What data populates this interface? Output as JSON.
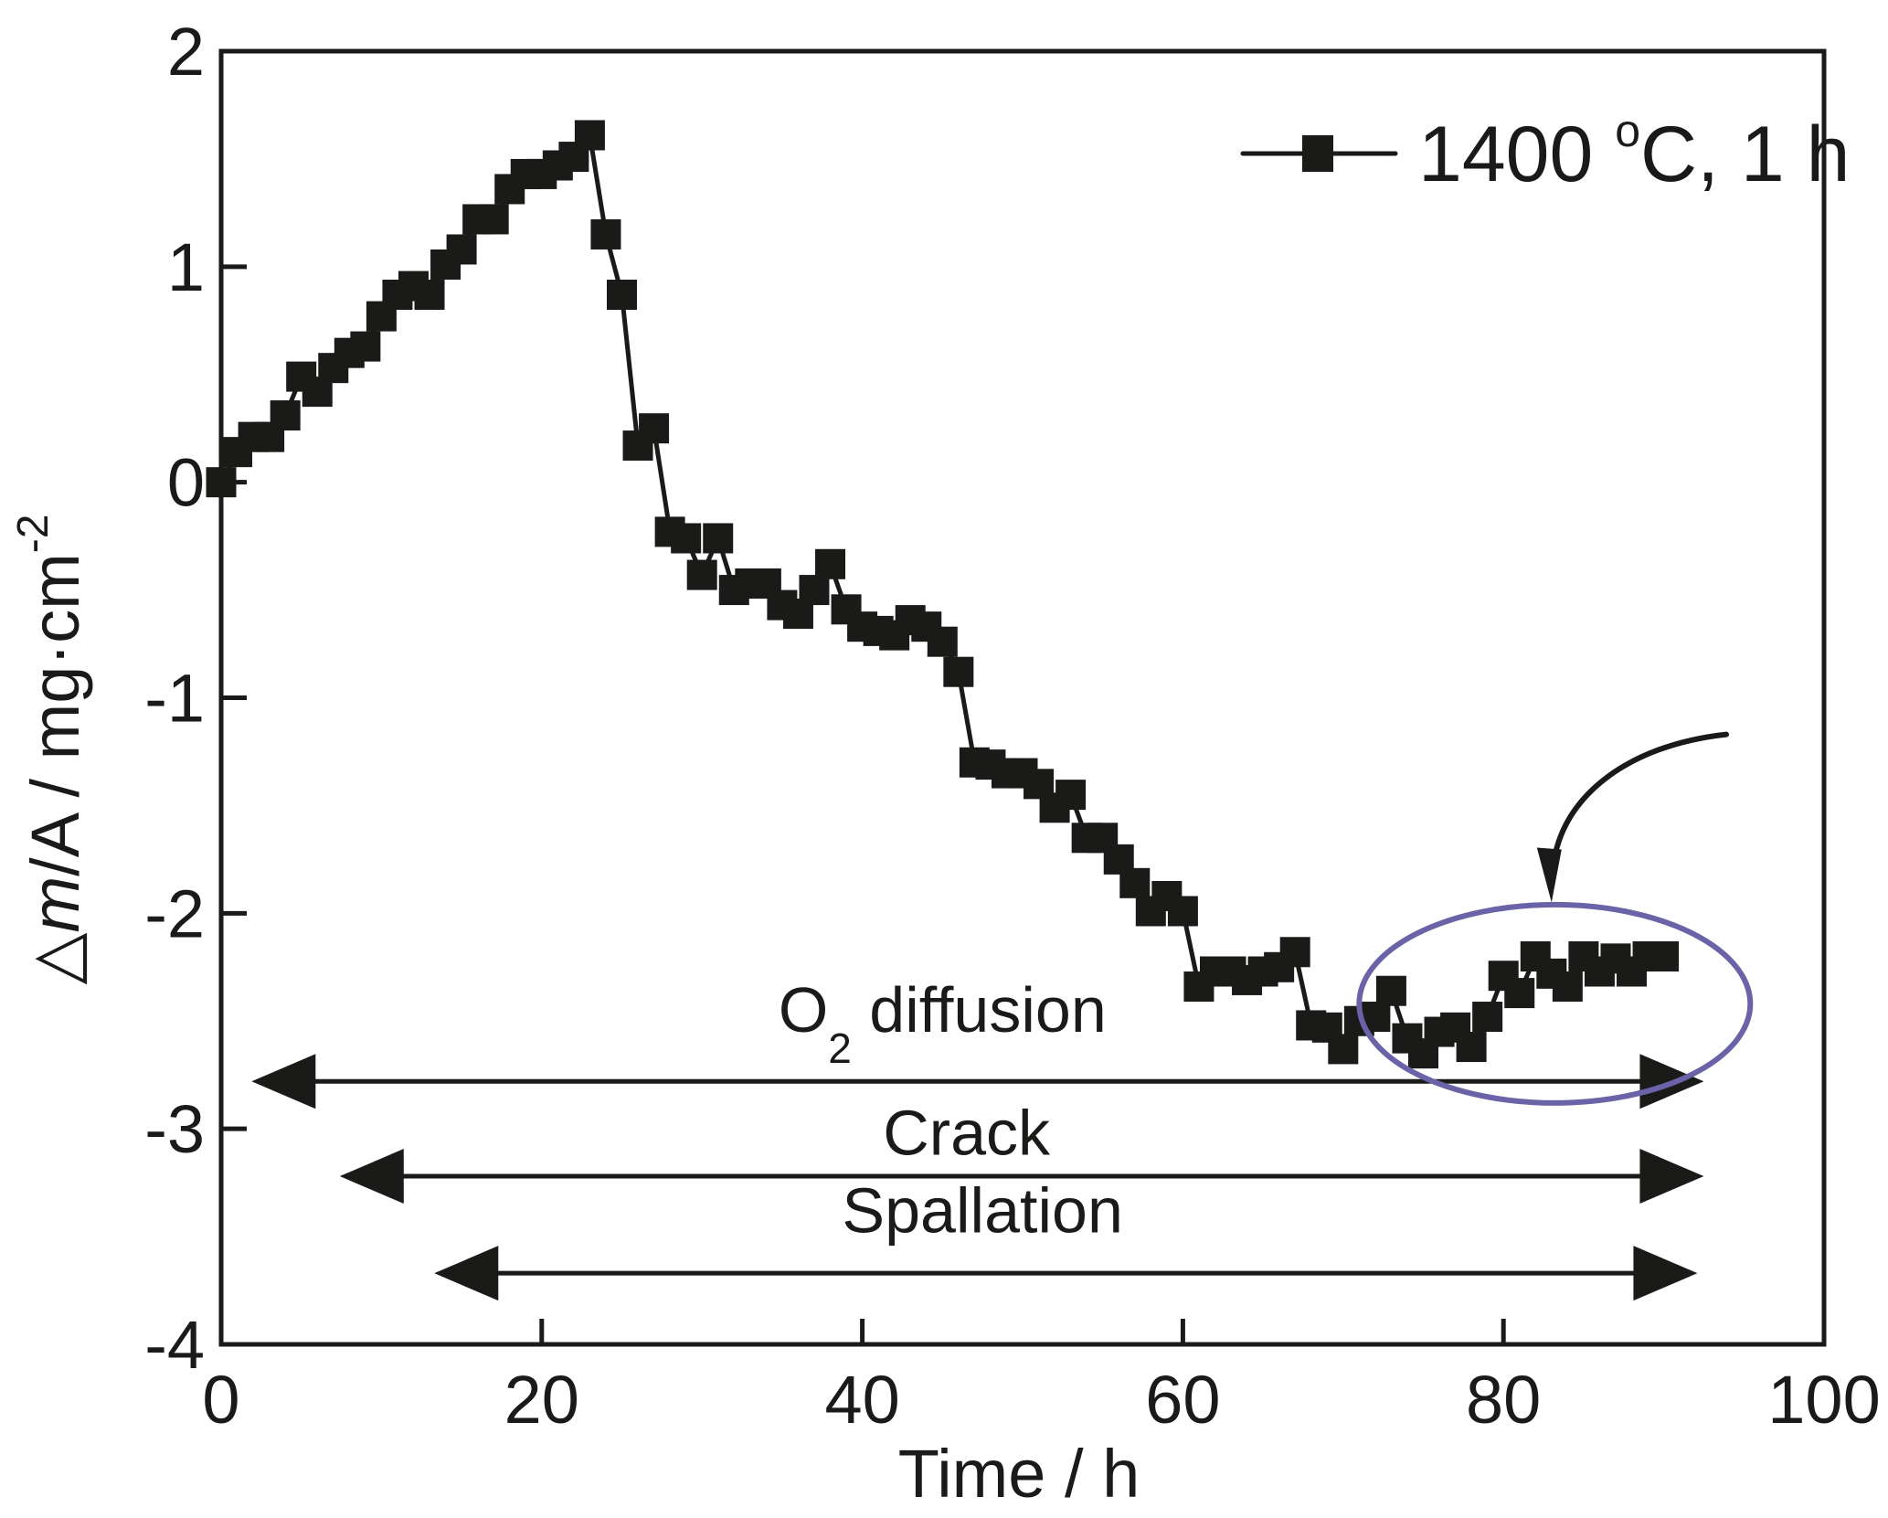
{
  "chart_data": {
    "type": "line",
    "title": "",
    "xlabel": "Time / h",
    "ylabel": {
      "prefix": "△",
      "italic": "m",
      "rest": "/A / mg·cm",
      "superscript": "-2"
    },
    "xlim": [
      0,
      100
    ],
    "ylim": [
      -4,
      2
    ],
    "xticks": [
      0,
      20,
      40,
      60,
      80,
      100
    ],
    "yticks": [
      2,
      1,
      0,
      -1,
      -2,
      -3,
      -4
    ],
    "grid": false,
    "legend": {
      "placement": "top-right",
      "entries": [
        {
          "label_main": "1400 ",
          "label_sup": "o",
          "label_rest": "C, 1 h"
        }
      ]
    },
    "series": [
      {
        "name": "1400 °C, 1 h",
        "marker": "square",
        "color": "#1a1a18",
        "x": [
          0,
          1,
          2,
          3,
          4,
          5,
          6,
          7,
          8,
          9,
          10,
          11,
          12,
          13,
          14,
          15,
          16,
          17,
          18,
          19,
          20,
          21,
          22,
          23,
          24,
          25,
          26,
          27,
          28,
          29,
          30,
          31,
          32,
          33,
          34,
          35,
          36,
          37,
          38,
          39,
          40,
          41,
          42,
          43,
          44,
          45,
          46,
          47,
          48,
          49,
          50,
          51,
          52,
          53,
          54,
          55,
          56,
          57,
          58,
          59,
          60,
          61,
          62,
          63,
          64,
          65,
          66,
          67,
          68,
          69,
          70,
          71,
          72,
          73,
          74,
          75,
          76,
          77,
          78,
          79,
          80,
          81,
          82,
          83,
          84,
          85,
          86,
          87,
          88,
          89,
          90
        ],
        "y": [
          0.0,
          0.14,
          0.21,
          0.21,
          0.31,
          0.49,
          0.42,
          0.53,
          0.6,
          0.63,
          0.77,
          0.87,
          0.91,
          0.87,
          1.01,
          1.08,
          1.22,
          1.22,
          1.36,
          1.43,
          1.43,
          1.47,
          1.51,
          1.61,
          1.15,
          0.87,
          0.17,
          0.25,
          -0.23,
          -0.26,
          -0.43,
          -0.26,
          -0.5,
          -0.47,
          -0.47,
          -0.57,
          -0.61,
          -0.5,
          -0.38,
          -0.59,
          -0.67,
          -0.69,
          -0.71,
          -0.64,
          -0.67,
          -0.74,
          -0.88,
          -1.3,
          -1.31,
          -1.35,
          -1.35,
          -1.4,
          -1.51,
          -1.45,
          -1.65,
          -1.65,
          -1.75,
          -1.86,
          -1.99,
          -1.92,
          -1.99,
          -2.34,
          -2.27,
          -2.27,
          -2.31,
          -2.27,
          -2.25,
          -2.18,
          -2.52,
          -2.53,
          -2.63,
          -2.5,
          -2.48,
          -2.36,
          -2.58,
          -2.65,
          -2.55,
          -2.53,
          -2.62,
          -2.48,
          -2.29,
          -2.37,
          -2.2,
          -2.28,
          -2.34,
          -2.2,
          -2.27,
          -2.21,
          -2.27,
          -2.2,
          -2.2
        ]
      }
    ],
    "annotations": [
      {
        "label": "O",
        "label_sub": "2",
        "label_rest": " diffusion",
        "type": "double-arrow",
        "x_start": 1.9,
        "x_end": 92.5,
        "y": -2.78,
        "label_x": 45,
        "label_y": -2.55
      },
      {
        "label": "Crack",
        "type": "double-arrow",
        "x_start": 7.4,
        "x_end": 92.5,
        "y": -3.22,
        "label_x": 46.5,
        "label_y": -3.12
      },
      {
        "label": "Spallation",
        "type": "double-arrow",
        "x_start": 13.3,
        "x_end": 92.1,
        "y": -3.67,
        "label_x": 47.5,
        "label_y": -3.48
      }
    ],
    "highlight": {
      "type": "ellipse",
      "color": "#6A63A8",
      "center": [
        83.2,
        -2.42
      ],
      "x_radius_data": 12.2,
      "y_radius_data": 0.46,
      "callout_arrow": {
        "from": [
          93.9,
          -1.17
        ],
        "to": [
          83.0,
          -1.95
        ]
      }
    }
  }
}
